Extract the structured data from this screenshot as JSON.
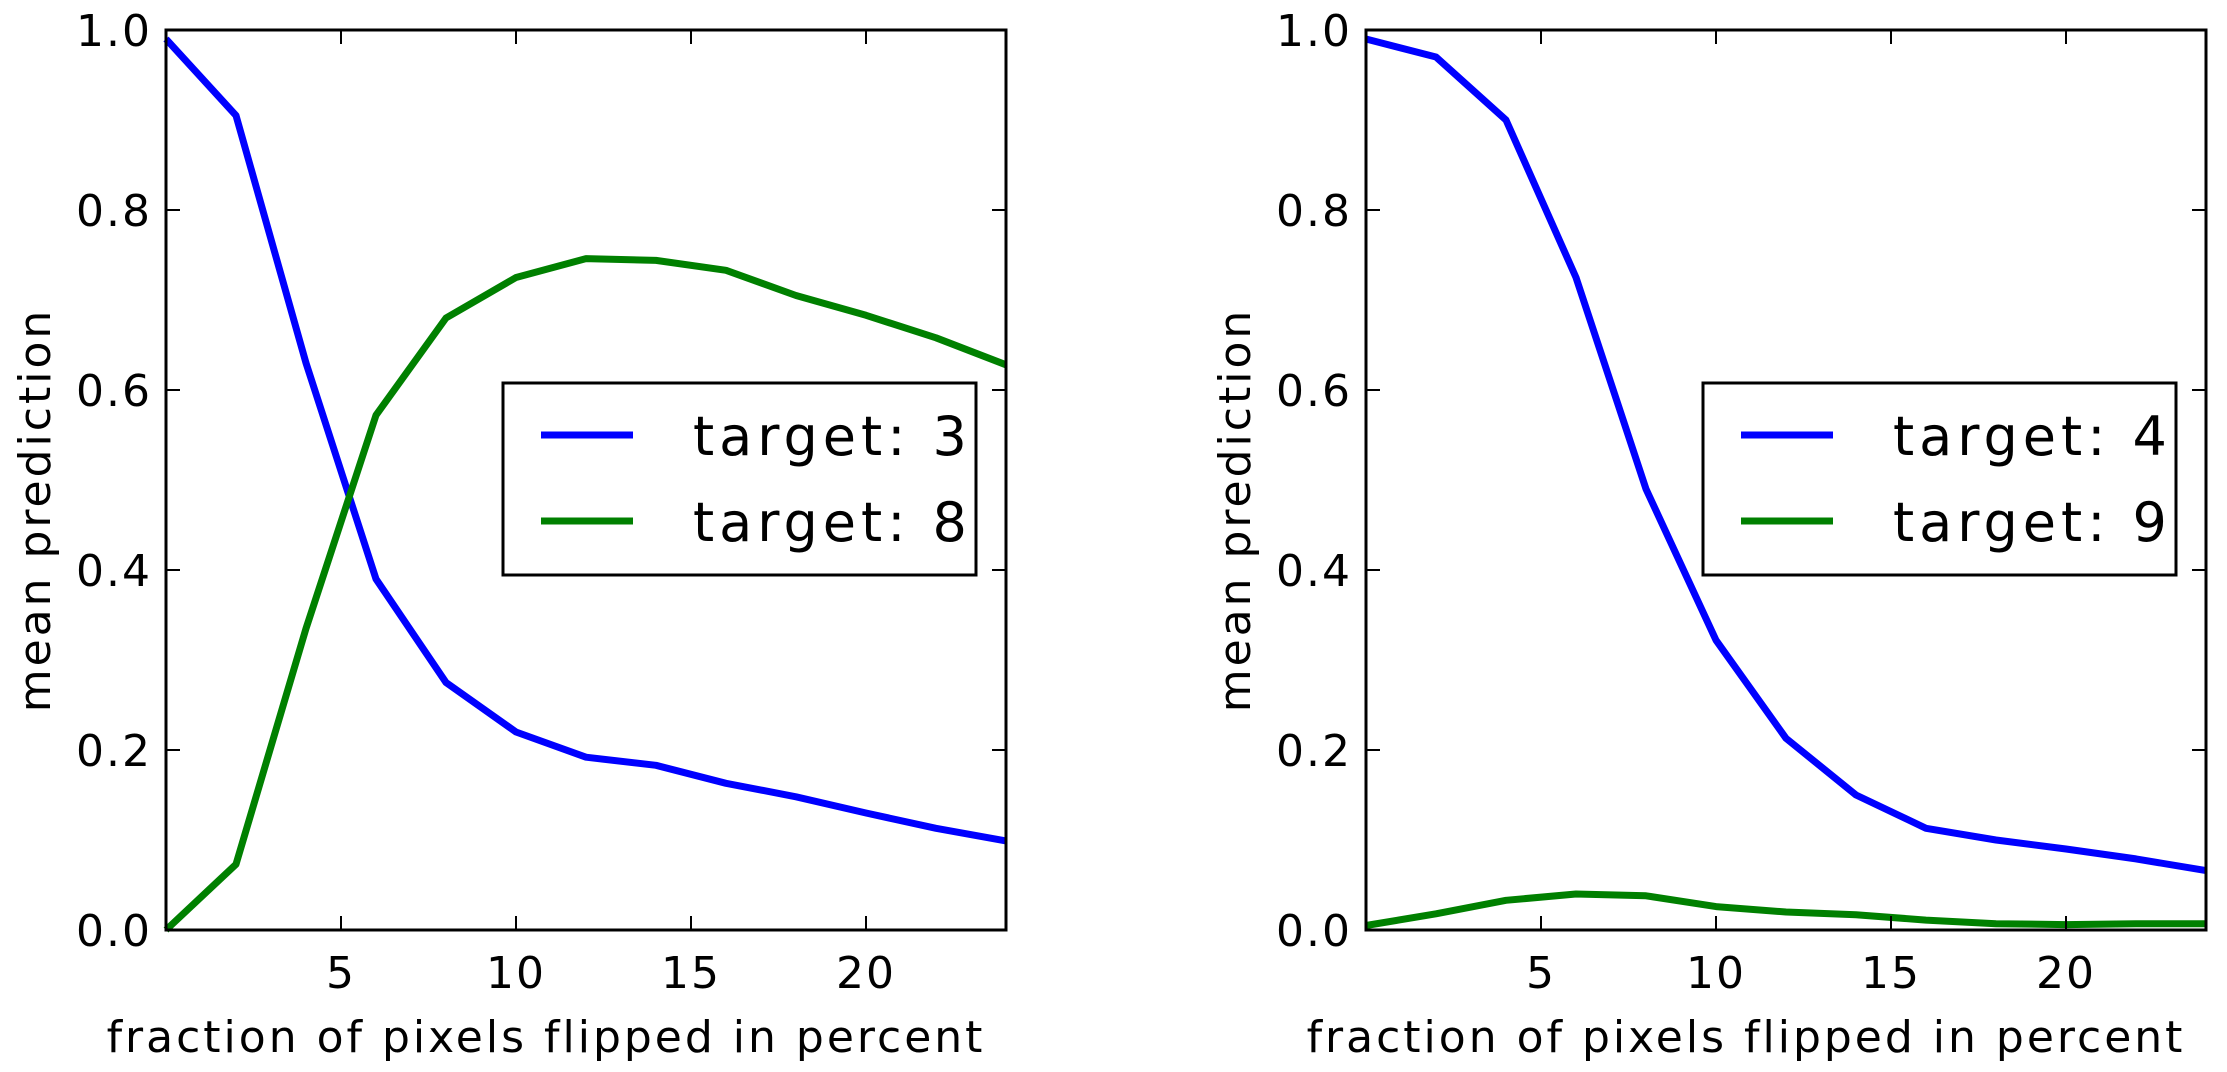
{
  "chart_data": [
    {
      "type": "line",
      "title": "",
      "xlabel": "fraction of pixels flipped in percent",
      "ylabel": "mean prediction",
      "xlim": [
        0,
        24
      ],
      "ylim": [
        0.0,
        1.0
      ],
      "xticks": [
        5,
        10,
        15,
        20
      ],
      "xtick_labels": [
        "5",
        "10",
        "15",
        "20"
      ],
      "yticks": [
        0.0,
        0.2,
        0.4,
        0.6,
        0.8,
        1.0
      ],
      "ytick_labels": [
        "0.0",
        "0.2",
        "0.4",
        "0.6",
        "0.8",
        "1.0"
      ],
      "grid": false,
      "legend_position": "center-right",
      "x": [
        0,
        2,
        4,
        6,
        8,
        10,
        12,
        14,
        16,
        18,
        20,
        22,
        24
      ],
      "series": [
        {
          "name": "target: 3",
          "color": "#0000ff",
          "values": [
            0.99,
            0.905,
            0.63,
            0.39,
            0.275,
            0.22,
            0.192,
            0.183,
            0.163,
            0.148,
            0.13,
            0.113,
            0.099
          ]
        },
        {
          "name": "target: 8",
          "color": "#008000",
          "values": [
            0.0,
            0.073,
            0.335,
            0.572,
            0.68,
            0.725,
            0.746,
            0.744,
            0.733,
            0.705,
            0.683,
            0.658,
            0.628
          ]
        }
      ]
    },
    {
      "type": "line",
      "title": "",
      "xlabel": "fraction of pixels flipped in percent",
      "ylabel": "mean prediction",
      "xlim": [
        0,
        24
      ],
      "ylim": [
        0.0,
        1.0
      ],
      "xticks": [
        5,
        10,
        15,
        20
      ],
      "xtick_labels": [
        "5",
        "10",
        "15",
        "20"
      ],
      "yticks": [
        0.0,
        0.2,
        0.4,
        0.6,
        0.8,
        1.0
      ],
      "ytick_labels": [
        "0.0",
        "0.2",
        "0.4",
        "0.6",
        "0.8",
        "1.0"
      ],
      "grid": false,
      "legend_position": "center-right",
      "x": [
        0,
        2,
        4,
        6,
        8,
        10,
        12,
        14,
        16,
        18,
        20,
        22,
        24
      ],
      "series": [
        {
          "name": "target: 4",
          "color": "#0000ff",
          "values": [
            0.99,
            0.97,
            0.9,
            0.725,
            0.49,
            0.322,
            0.213,
            0.15,
            0.113,
            0.1,
            0.09,
            0.079,
            0.066
          ]
        },
        {
          "name": "target: 9",
          "color": "#008000",
          "values": [
            0.005,
            0.018,
            0.033,
            0.04,
            0.038,
            0.026,
            0.02,
            0.017,
            0.011,
            0.007,
            0.006,
            0.007,
            0.007
          ]
        }
      ]
    }
  ]
}
